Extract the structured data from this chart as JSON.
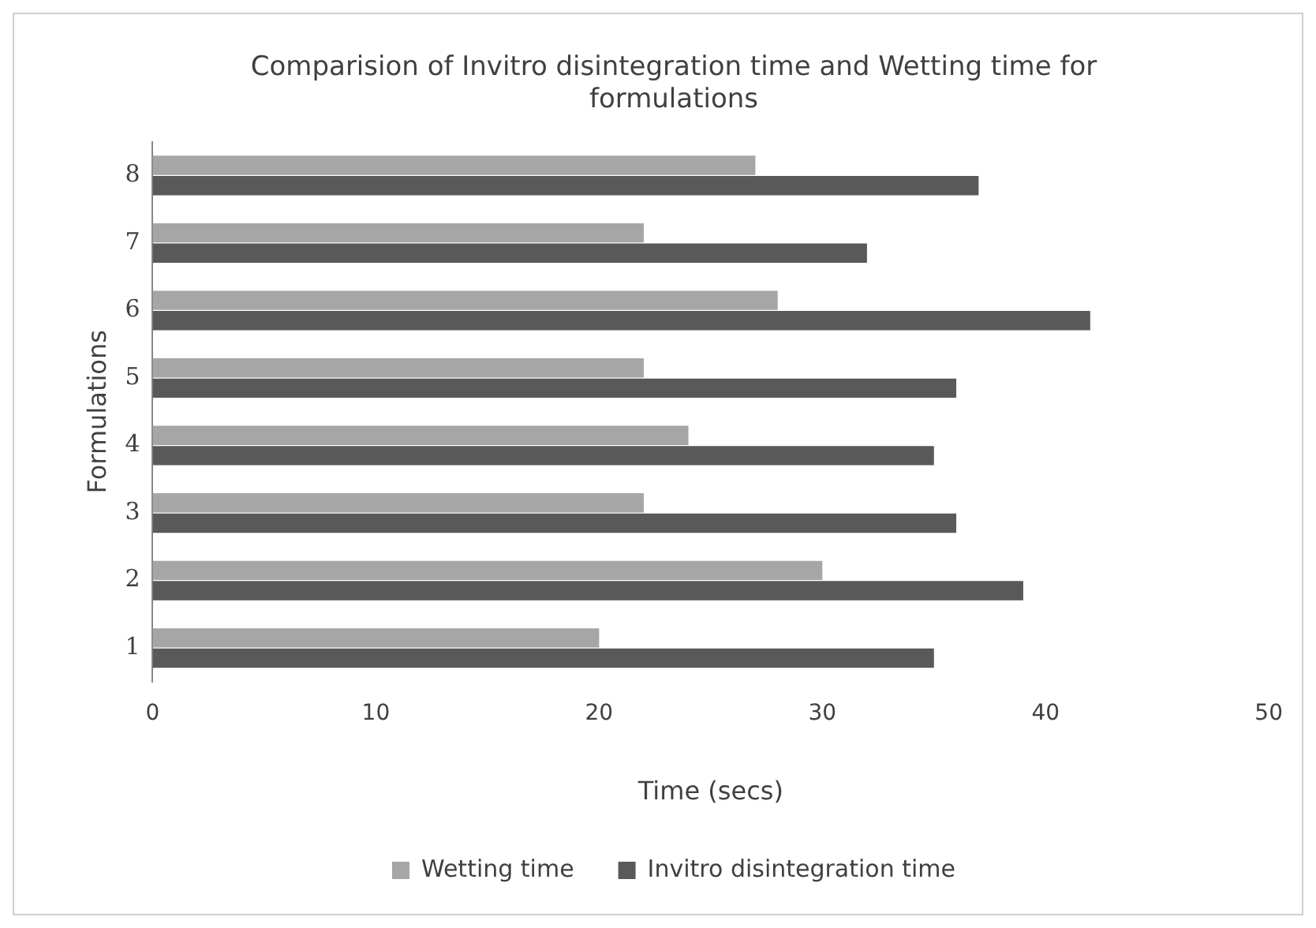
{
  "chart_data": {
    "type": "bar",
    "orientation": "horizontal",
    "title": "Comparision of Invitro disintegration time and Wetting time for formulations",
    "xlabel": "Time (secs)",
    "ylabel": "Formulations",
    "categories": [
      "8",
      "7",
      "6",
      "5",
      "4",
      "3",
      "2",
      "1"
    ],
    "series": [
      {
        "name": "Wetting time",
        "color": "#a6a6a6",
        "values": [
          27,
          22,
          28,
          22,
          24,
          22,
          30,
          20
        ]
      },
      {
        "name": "Invitro disintegration time",
        "color": "#595959",
        "values": [
          37,
          32,
          42,
          36,
          35,
          36,
          39,
          35
        ]
      }
    ],
    "xlim": [
      0,
      50
    ],
    "xticks": [
      0,
      10,
      20,
      30,
      40,
      50
    ],
    "grid": false,
    "legend": "bottom"
  }
}
